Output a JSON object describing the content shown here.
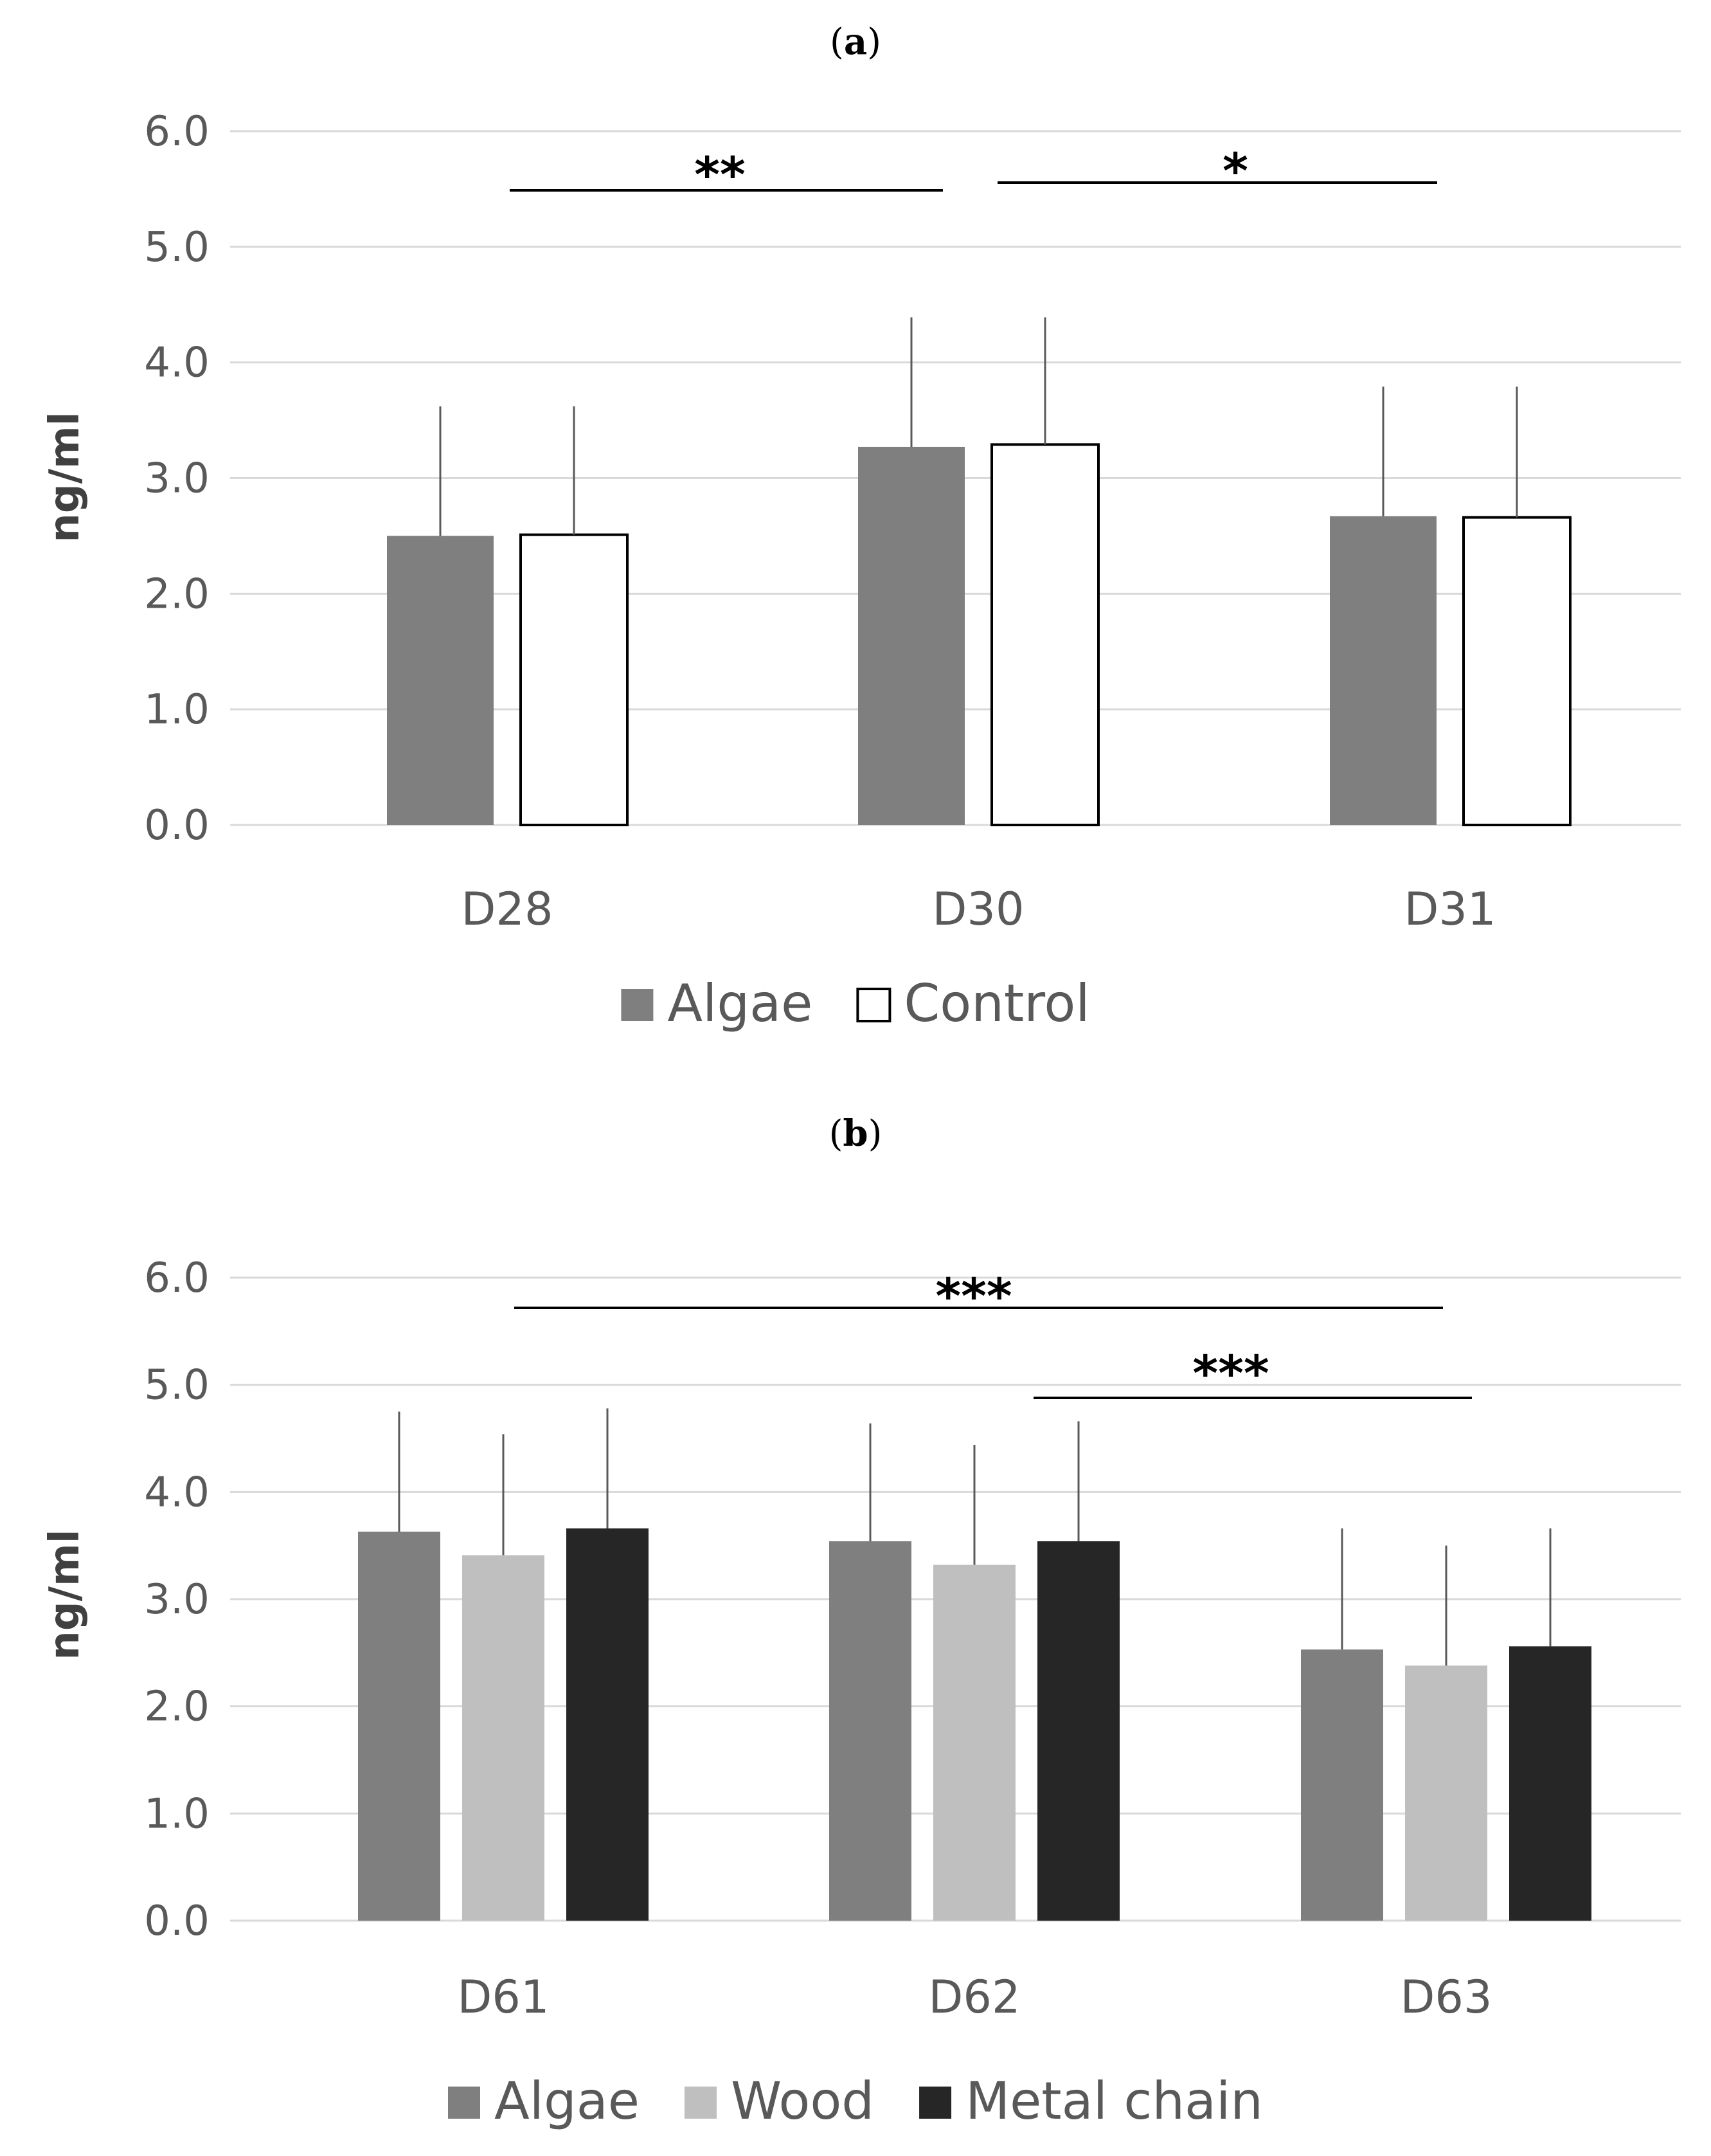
{
  "chart_data": [
    {
      "type": "bar",
      "panel_label": "a",
      "categories": [
        "D28",
        "D30",
        "D31"
      ],
      "series": [
        {
          "name": "Algae",
          "values": [
            2.5,
            3.27,
            2.67
          ],
          "errors": [
            1.12,
            1.12,
            1.12
          ],
          "color": "#7f7f7f"
        },
        {
          "name": "Control",
          "values": [
            2.51,
            3.29,
            2.66
          ],
          "errors": [
            1.11,
            1.1,
            1.13
          ],
          "color": "#ffffff"
        }
      ],
      "ylabel": "ng/ml",
      "ylim": [
        0,
        6
      ],
      "yticks": [
        "0.0",
        "1.0",
        "2.0",
        "3.0",
        "4.0",
        "5.0",
        "6.0"
      ],
      "grid": true,
      "legend": "bottom",
      "annotations": [
        {
          "text": "**",
          "from": "D28",
          "to": "D30"
        },
        {
          "text": "*",
          "from": "D30",
          "to": "D31"
        }
      ]
    },
    {
      "type": "bar",
      "panel_label": "b",
      "categories": [
        "D61",
        "D62",
        "D63"
      ],
      "series": [
        {
          "name": "Algae",
          "values": [
            3.63,
            3.54,
            2.53
          ],
          "errors": [
            1.12,
            1.1,
            1.13
          ],
          "color": "#7f7f7f"
        },
        {
          "name": "Wood",
          "values": [
            3.41,
            3.32,
            2.38
          ],
          "errors": [
            1.13,
            1.12,
            1.12
          ],
          "color": "#bfbfbf"
        },
        {
          "name": "Metal chain",
          "values": [
            3.66,
            3.54,
            2.56
          ],
          "errors": [
            1.12,
            1.12,
            1.1
          ],
          "color": "#262626"
        }
      ],
      "ylabel": "ng/ml",
      "ylim": [
        0,
        6
      ],
      "yticks": [
        "0.0",
        "1.0",
        "2.0",
        "3.0",
        "4.0",
        "5.0",
        "6.0"
      ],
      "grid": true,
      "legend": "bottom",
      "annotations": [
        {
          "text": "***",
          "from": "D61",
          "to": "D63"
        },
        {
          "text": "***",
          "from": "D62",
          "to": "D63"
        }
      ]
    }
  ]
}
